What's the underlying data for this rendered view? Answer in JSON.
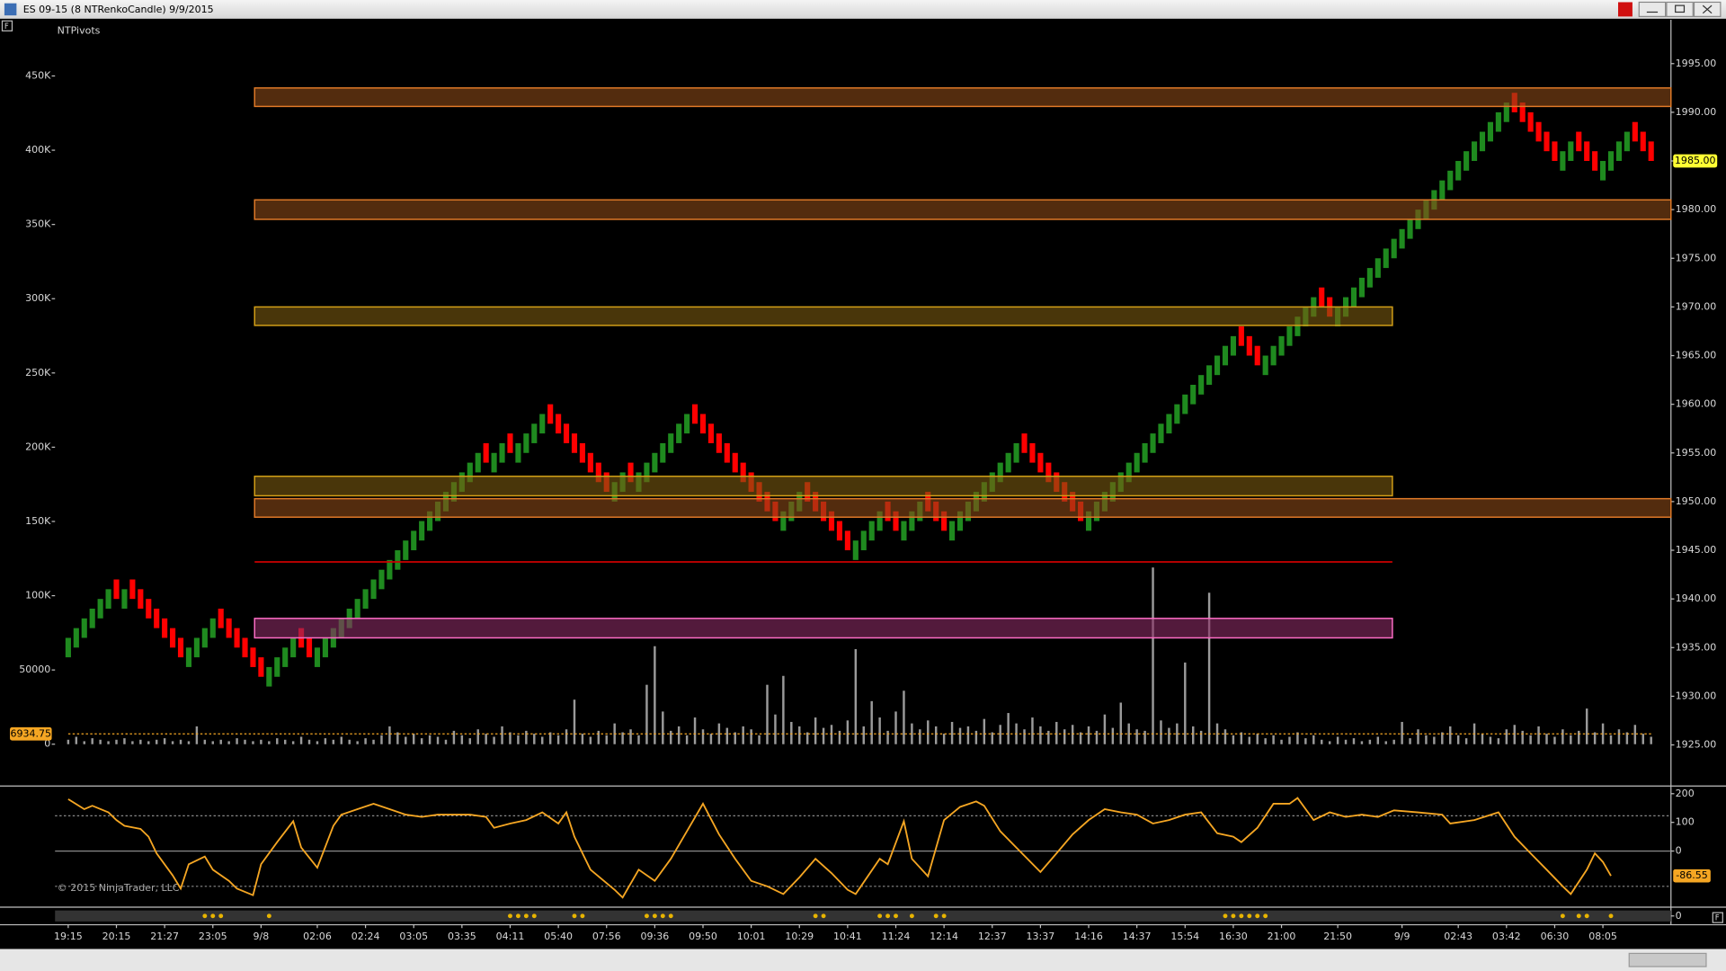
{
  "window": {
    "title": "ES 09-15 (8 NTRenkoCandle)  9/9/2015"
  },
  "copyright": "© 2015 NinjaTrader, LLC",
  "chart_data": [
    {
      "type": "candlestick",
      "title": "NTPivots",
      "xlim": [
        -1.64,
        199.47
      ],
      "xticks": [
        {
          "value": 0,
          "label": "19:15"
        },
        {
          "value": 6,
          "label": "20:15"
        },
        {
          "value": 12,
          "label": "21:27"
        },
        {
          "value": 18,
          "label": "23:05"
        },
        {
          "value": 24,
          "label": "9/8"
        },
        {
          "value": 31,
          "label": "02:06"
        },
        {
          "value": 37,
          "label": "02:24"
        },
        {
          "value": 43,
          "label": "03:05"
        },
        {
          "value": 49,
          "label": "03:35"
        },
        {
          "value": 55,
          "label": "04:11"
        },
        {
          "value": 61,
          "label": "05:40"
        },
        {
          "value": 67,
          "label": "07:56"
        },
        {
          "value": 73,
          "label": "09:36"
        },
        {
          "value": 79,
          "label": "09:50"
        },
        {
          "value": 85,
          "label": "10:01"
        },
        {
          "value": 91,
          "label": "10:29"
        },
        {
          "value": 97,
          "label": "10:41"
        },
        {
          "value": 103,
          "label": "11:24"
        },
        {
          "value": 109,
          "label": "12:14"
        },
        {
          "value": 115,
          "label": "12:37"
        },
        {
          "value": 121,
          "label": "13:37"
        },
        {
          "value": 127,
          "label": "14:16"
        },
        {
          "value": 133,
          "label": "14:37"
        },
        {
          "value": 139,
          "label": "15:54"
        },
        {
          "value": 145,
          "label": "16:30"
        },
        {
          "value": 151,
          "label": "21:00"
        },
        {
          "value": 158,
          "label": "21:50"
        },
        {
          "value": 166,
          "label": "9/9"
        },
        {
          "value": 173,
          "label": "02:43"
        },
        {
          "value": 179,
          "label": "03:42"
        },
        {
          "value": 185,
          "label": "06:30"
        },
        {
          "value": 191,
          "label": "08:05"
        }
      ],
      "ylim": [
        1921,
        1999.5
      ],
      "yticks": [
        {
          "value": 1925,
          "label": "1925.00"
        },
        {
          "value": 1930,
          "label": "1930.00"
        },
        {
          "value": 1935,
          "label": "1935.00"
        },
        {
          "value": 1940,
          "label": "1940.00"
        },
        {
          "value": 1945,
          "label": "1945.00"
        },
        {
          "value": 1950,
          "label": "1950.00"
        },
        {
          "value": 1955,
          "label": "1955.00"
        },
        {
          "value": 1960,
          "label": "1960.00"
        },
        {
          "value": 1965,
          "label": "1965.00"
        },
        {
          "value": 1970,
          "label": "1970.00"
        },
        {
          "value": 1975,
          "label": "1975.00"
        },
        {
          "value": 1980,
          "label": "1980.00"
        },
        {
          "value": 1985,
          "label": "1985.00"
        },
        {
          "value": 1990,
          "label": "1990.00"
        },
        {
          "value": 1995,
          "label": "1995.00"
        }
      ],
      "up_color": "#1f8a1f",
      "down_color": "#ff0000",
      "open": [
        1934,
        1935,
        1936,
        1937,
        1938,
        1939,
        1942,
        1939,
        1942,
        1941,
        1940,
        1939,
        1938,
        1937,
        1936,
        1933,
        1934,
        1935,
        1936,
        1939,
        1938,
        1937,
        1936,
        1935,
        1934,
        1931,
        1932,
        1933,
        1934,
        1937,
        1936,
        1933,
        1934,
        1935,
        1936,
        1937,
        1938,
        1939,
        1940,
        1941,
        1942,
        1943,
        1944,
        1945,
        1946,
        1947,
        1948,
        1949,
        1950,
        1951,
        1952,
        1953,
        1956,
        1953,
        1954,
        1957,
        1954,
        1955,
        1956,
        1957,
        1960,
        1959,
        1958,
        1957,
        1956,
        1955,
        1954,
        1953,
        1950,
        1951,
        1954,
        1951,
        1952,
        1953,
        1954,
        1955,
        1956,
        1957,
        1960,
        1959,
        1958,
        1957,
        1956,
        1955,
        1954,
        1953,
        1952,
        1951,
        1950,
        1947,
        1948,
        1949,
        1952,
        1951,
        1950,
        1949,
        1948,
        1947,
        1944,
        1945,
        1946,
        1947,
        1950,
        1949,
        1946,
        1947,
        1948,
        1951,
        1950,
        1949,
        1946,
        1947,
        1948,
        1949,
        1950,
        1951,
        1952,
        1953,
        1954,
        1957,
        1956,
        1955,
        1954,
        1953,
        1952,
        1951,
        1950,
        1947,
        1948,
        1949,
        1950,
        1951,
        1952,
        1953,
        1954,
        1955,
        1956,
        1957,
        1958,
        1959,
        1960,
        1961,
        1962,
        1963,
        1964,
        1965,
        1968,
        1967,
        1966,
        1963,
        1964,
        1965,
        1966,
        1967,
        1968,
        1969,
        1972,
        1971,
        1968,
        1969,
        1970,
        1971,
        1972,
        1973,
        1974,
        1975,
        1976,
        1977,
        1978,
        1979,
        1980,
        1981,
        1982,
        1983,
        1984,
        1985,
        1986,
        1987,
        1988,
        1989,
        1992,
        1991,
        1990,
        1989,
        1988,
        1987,
        1984,
        1985,
        1988,
        1987,
        1986,
        1983,
        1984,
        1985,
        1986,
        1989,
        1988,
        1987
      ],
      "close": [
        1936,
        1937,
        1938,
        1939,
        1940,
        1941,
        1940,
        1941,
        1940,
        1939,
        1938,
        1937,
        1936,
        1935,
        1934,
        1935,
        1936,
        1937,
        1938,
        1937,
        1936,
        1935,
        1934,
        1933,
        1932,
        1933,
        1934,
        1935,
        1936,
        1935,
        1934,
        1935,
        1936,
        1937,
        1938,
        1939,
        1940,
        1941,
        1942,
        1943,
        1944,
        1945,
        1946,
        1947,
        1948,
        1949,
        1950,
        1951,
        1952,
        1953,
        1954,
        1955,
        1954,
        1955,
        1956,
        1955,
        1956,
        1957,
        1958,
        1959,
        1958,
        1957,
        1956,
        1955,
        1954,
        1953,
        1952,
        1951,
        1952,
        1953,
        1952,
        1953,
        1954,
        1955,
        1956,
        1957,
        1958,
        1959,
        1958,
        1957,
        1956,
        1955,
        1954,
        1953,
        1952,
        1951,
        1950,
        1949,
        1948,
        1949,
        1950,
        1951,
        1950,
        1949,
        1948,
        1947,
        1946,
        1945,
        1946,
        1947,
        1948,
        1949,
        1948,
        1947,
        1948,
        1949,
        1950,
        1949,
        1948,
        1947,
        1948,
        1949,
        1950,
        1951,
        1952,
        1953,
        1954,
        1955,
        1956,
        1955,
        1954,
        1953,
        1952,
        1951,
        1950,
        1949,
        1948,
        1949,
        1950,
        1951,
        1952,
        1953,
        1954,
        1955,
        1956,
        1957,
        1958,
        1959,
        1960,
        1961,
        1962,
        1963,
        1964,
        1965,
        1966,
        1967,
        1966,
        1965,
        1964,
        1965,
        1966,
        1967,
        1968,
        1969,
        1970,
        1971,
        1970,
        1969,
        1970,
        1971,
        1972,
        1973,
        1974,
        1975,
        1976,
        1977,
        1978,
        1979,
        1980,
        1981,
        1982,
        1983,
        1984,
        1985,
        1986,
        1987,
        1988,
        1989,
        1990,
        1991,
        1990,
        1989,
        1988,
        1987,
        1986,
        1985,
        1986,
        1987,
        1986,
        1985,
        1984,
        1985,
        1986,
        1987,
        1988,
        1987,
        1986,
        1985
      ],
      "last_price": {
        "value": 1985,
        "label": "1985.00"
      },
      "volume": {
        "color": "#9a9a9a",
        "ylim": [
          -26700,
          487800
        ],
        "yticks": [
          0,
          50000,
          {
            "value": 100000,
            "label": "100K"
          },
          {
            "value": 150000,
            "label": "150K"
          },
          {
            "value": 200000,
            "label": "200K"
          },
          {
            "value": 250000,
            "label": "250K"
          },
          {
            "value": 300000,
            "label": "300K"
          },
          {
            "value": 350000,
            "label": "350K"
          },
          {
            "value": 400000,
            "label": "400K"
          },
          {
            "value": 450000,
            "label": "450K"
          }
        ],
        "values": [
          3000,
          5000,
          2000,
          4000,
          3000,
          2000,
          3000,
          4000,
          2000,
          3000,
          2000,
          3000,
          4000,
          2000,
          3000,
          2000,
          12000,
          3000,
          2000,
          3000,
          2000,
          4000,
          3000,
          2000,
          3000,
          2000,
          4000,
          3000,
          2000,
          5000,
          3000,
          2000,
          4000,
          3000,
          5000,
          3000,
          2000,
          4000,
          3000,
          6000,
          12000,
          8000,
          5000,
          7000,
          4000,
          6000,
          5000,
          3000,
          9000,
          6000,
          4000,
          10000,
          7000,
          5000,
          12000,
          8000,
          6000,
          9000,
          7000,
          5000,
          8000,
          6000,
          10000,
          30000,
          7000,
          5000,
          9000,
          6000,
          14000,
          8000,
          10000,
          6000,
          40000,
          66000,
          22000,
          9000,
          12000,
          6000,
          18000,
          10000,
          7000,
          14000,
          11000,
          8000,
          12000,
          10000,
          6000,
          40000,
          20000,
          46000,
          15000,
          12000,
          8000,
          18000,
          11000,
          13000,
          9000,
          16000,
          64000,
          12000,
          29000,
          18000,
          9000,
          22000,
          36000,
          14000,
          10000,
          16000,
          12000,
          7000,
          15000,
          11000,
          12000,
          9000,
          17000,
          8000,
          13000,
          21000,
          14000,
          10000,
          18000,
          12000,
          9000,
          15000,
          10000,
          13000,
          8000,
          12000,
          9000,
          20000,
          11000,
          28000,
          14000,
          10000,
          9000,
          119000,
          16000,
          11000,
          14000,
          55000,
          12000,
          9000,
          102000,
          14000,
          10000,
          6000,
          8000,
          5000,
          7000,
          4000,
          6000,
          3000,
          5000,
          8000,
          4000,
          6000,
          3000,
          2000,
          5000,
          3000,
          4000,
          2000,
          3000,
          5000,
          2000,
          3000,
          15000,
          4000,
          10000,
          6000,
          5000,
          8000,
          12000,
          6000,
          4000,
          14000,
          7000,
          5000,
          4000,
          10000,
          13000,
          9000,
          6000,
          12000,
          7000,
          5000,
          10000,
          6000,
          9000,
          24000,
          8000,
          14000,
          6000,
          10000,
          8000,
          13000,
          7000,
          5000
        ],
        "average": 6934.75,
        "average_color": "#f5a623"
      },
      "pivots": [
        {
          "low": 1990.6,
          "high": 1992.5,
          "from": 23.2,
          "to": 199.47,
          "fill": "#8a4a18",
          "stroke": "#e07a28"
        },
        {
          "low": 1979.0,
          "high": 1981.0,
          "from": 23.2,
          "to": 199.47,
          "fill": "#8a4a18",
          "stroke": "#e07a28"
        },
        {
          "low": 1968.1,
          "high": 1970.0,
          "from": 23.2,
          "to": 164.8,
          "fill": "#7a5a10",
          "stroke": "#d4a017"
        },
        {
          "low": 1950.6,
          "high": 1952.6,
          "from": 23.2,
          "to": 164.8,
          "fill": "#7a5a10",
          "stroke": "#d4a017"
        },
        {
          "low": 1948.4,
          "high": 1950.3,
          "from": 23.2,
          "to": 199.47,
          "fill": "#8a4a18",
          "stroke": "#e07a28"
        },
        {
          "low": 1943.8,
          "high": 1943.8,
          "from": 23.2,
          "to": 164.8,
          "fill": "#cc0000",
          "stroke": "#cc0000"
        },
        {
          "low": 1936.0,
          "high": 1938.0,
          "from": 23.2,
          "to": 164.8,
          "fill": "#8a2c64",
          "stroke": "#ff6ec7"
        }
      ]
    },
    {
      "type": "line",
      "xlim": [
        -1.64,
        199.47
      ],
      "ylim": [
        -188,
        219
      ],
      "yticks": [
        0,
        100,
        200
      ],
      "levels": [
        123,
        0,
        -123
      ],
      "color": "#f5a623",
      "x": [
        0,
        2,
        3,
        5,
        6,
        7,
        9,
        10,
        11,
        13,
        14,
        15,
        17,
        18,
        20,
        21,
        23,
        24,
        26,
        28,
        29,
        31,
        33,
        34,
        36,
        38,
        40,
        42,
        44,
        46,
        50,
        52,
        53,
        55,
        57,
        59,
        61,
        62,
        63,
        65,
        68,
        69,
        71,
        73,
        75,
        77,
        79,
        81,
        83,
        85,
        87,
        89,
        91,
        93,
        95,
        97,
        98,
        101,
        102,
        104,
        105,
        107,
        109,
        111,
        113,
        114,
        116,
        118,
        121,
        123,
        125,
        127,
        129,
        131,
        133,
        135,
        137,
        139,
        141,
        143,
        145,
        146,
        148,
        150,
        152,
        153,
        155,
        157,
        159,
        161,
        163,
        165,
        168,
        171,
        172,
        175,
        178,
        180,
        182,
        184,
        186,
        187,
        189,
        190,
        191,
        192
      ],
      "values": [
        181,
        146,
        158,
        135,
        108,
        88,
        77,
        50,
        -8,
        -85,
        -131,
        -46,
        -19,
        -65,
        -104,
        -131,
        -154,
        -46,
        31,
        104,
        12,
        -58,
        88,
        127,
        146,
        165,
        146,
        127,
        119,
        127,
        127,
        119,
        81,
        96,
        108,
        135,
        96,
        135,
        50,
        -65,
        -135,
        -162,
        -65,
        -104,
        -27,
        69,
        165,
        58,
        -27,
        -104,
        -123,
        -150,
        -92,
        -27,
        -77,
        -135,
        -150,
        -27,
        -46,
        104,
        -27,
        -88,
        108,
        154,
        173,
        158,
        69,
        12,
        -73,
        -8,
        58,
        108,
        146,
        135,
        127,
        96,
        108,
        127,
        135,
        62,
        50,
        31,
        81,
        165,
        165,
        185,
        108,
        135,
        119,
        127,
        119,
        142,
        135,
        127,
        96,
        108,
        135,
        50,
        -8,
        -65,
        -123,
        -150,
        -65,
        -8,
        -38,
        -86.55
      ]
    },
    {
      "type": "dots",
      "xlim": [
        -1.64,
        199.47
      ],
      "ylim": [
        -1,
        1
      ],
      "yticks": [
        0
      ],
      "color": "#e8b400",
      "x": [
        17,
        18,
        19,
        25,
        55,
        56,
        57,
        58,
        63,
        64,
        72,
        73,
        74,
        75,
        93,
        94,
        101,
        102,
        103,
        105,
        108,
        109,
        144,
        145,
        146,
        147,
        148,
        149,
        186,
        188,
        189,
        192
      ],
      "values": [
        0,
        0,
        0,
        0,
        0,
        0,
        0,
        0,
        0,
        0,
        0,
        0,
        0,
        0,
        0,
        0,
        0,
        0,
        0,
        0,
        0,
        0,
        0,
        0,
        0,
        0,
        0,
        0,
        0,
        0,
        0,
        0
      ]
    }
  ]
}
